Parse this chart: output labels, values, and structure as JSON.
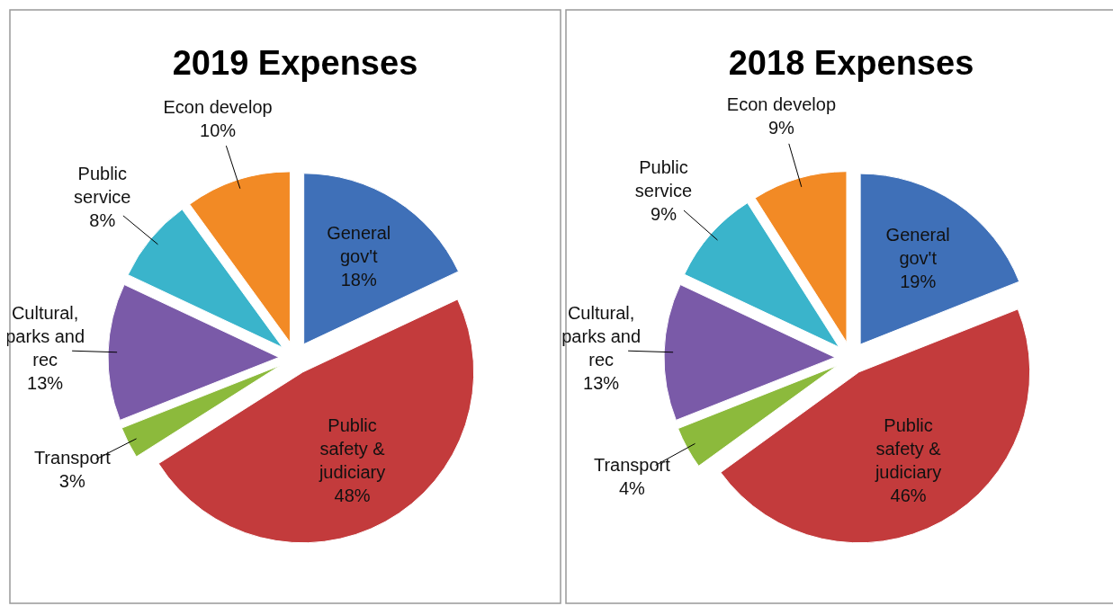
{
  "chart_data": [
    {
      "type": "pie",
      "title": "2019 Expenses",
      "categories": [
        "General gov't",
        "Public safety & judiciary",
        "Transport",
        "Cultural, parks and rec",
        "Public service",
        "Econ develop"
      ],
      "values": [
        18,
        48,
        3,
        13,
        8,
        10
      ],
      "value_labels": [
        "18%",
        "48%",
        "3%",
        "13%",
        "8%",
        "10%"
      ],
      "colors": [
        "#3f70b8",
        "#c33b3c",
        "#8cba3c",
        "#7a5aa8",
        "#3ab4cb",
        "#f28a25"
      ]
    },
    {
      "type": "pie",
      "title": "2018 Expenses",
      "categories": [
        "General gov't",
        "Public safety & judiciary",
        "Transport",
        "Cultural, parks and rec",
        "Public service",
        "Econ develop"
      ],
      "values": [
        19,
        46,
        4,
        13,
        9,
        9
      ],
      "value_labels": [
        "19%",
        "46%",
        "4%",
        "13%",
        "9%",
        "9%"
      ],
      "colors": [
        "#3f70b8",
        "#c33b3c",
        "#8cba3c",
        "#7a5aa8",
        "#3ab4cb",
        "#f28a25"
      ]
    }
  ]
}
